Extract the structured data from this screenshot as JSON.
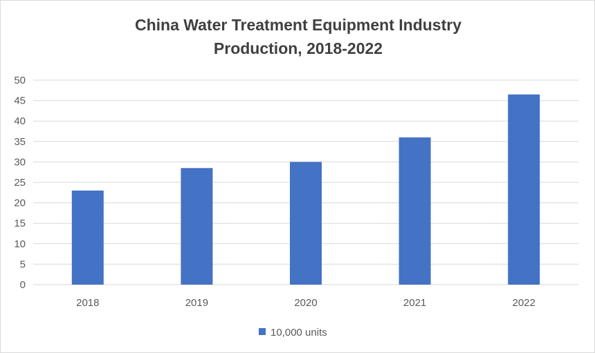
{
  "chart_data": {
    "type": "bar",
    "title": "China Water Treatment Equipment Industry Production, 2018-2022",
    "categories": [
      "2018",
      "2019",
      "2020",
      "2021",
      "2022"
    ],
    "series": [
      {
        "name": "10,000 units",
        "values": [
          23,
          28.5,
          30,
          36,
          46.5
        ],
        "color": "#4472c4"
      }
    ],
    "xlabel": "",
    "ylabel": "",
    "ylim": [
      0,
      50
    ],
    "yticks": [
      "0",
      "5",
      "10",
      "15",
      "20",
      "25",
      "30",
      "35",
      "40",
      "45",
      "50"
    ],
    "grid": true,
    "legend": "bottom-center",
    "colors": {
      "bar": "#4472c4",
      "grid": "#d9d9d9",
      "text": "#595959",
      "title": "#404040"
    }
  }
}
